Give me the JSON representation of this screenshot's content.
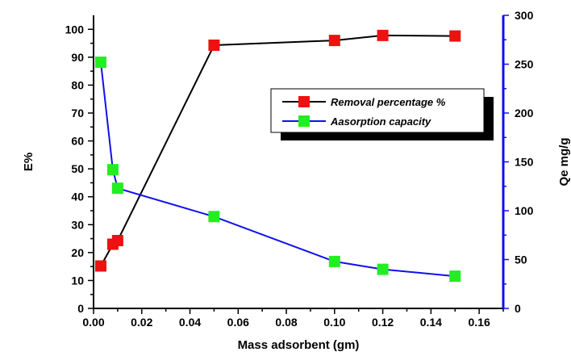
{
  "chart_data": {
    "type": "line",
    "xlabel": "Mass adsorbent (gm)",
    "ylabel": "E%",
    "y2label": "Qe mg/g",
    "xlim": [
      0.0,
      0.17
    ],
    "ylim": [
      0,
      105
    ],
    "y2lim": [
      0,
      300
    ],
    "x_ticks": [
      "0.00",
      "0.02",
      "0.04",
      "0.06",
      "0.08",
      "0.10",
      "0.12",
      "0.14",
      "0.16"
    ],
    "y_ticks": [
      "0",
      "10",
      "20",
      "30",
      "40",
      "50",
      "60",
      "70",
      "80",
      "90",
      "100"
    ],
    "y2_ticks": [
      "0",
      "50",
      "100",
      "150",
      "200",
      "250",
      "300"
    ],
    "grid": false,
    "legend_position": "upper-right",
    "series": [
      {
        "name": "Removal percentage %",
        "axis": "left",
        "line_color": "#000000",
        "marker_color": "#ee1111",
        "x": [
          0.003,
          0.008,
          0.01,
          0.05,
          0.1,
          0.12,
          0.15
        ],
        "values": [
          15.2,
          23.0,
          24.3,
          94.3,
          96.0,
          97.8,
          97.6
        ]
      },
      {
        "name": "Aasorption capacity",
        "axis": "right",
        "line_color": "#1010ee",
        "marker_color": "#22ee22",
        "x": [
          0.003,
          0.008,
          0.01,
          0.05,
          0.1,
          0.12,
          0.15
        ],
        "values": [
          252,
          142,
          123,
          94,
          48,
          40,
          33
        ]
      }
    ]
  },
  "colors": {
    "left_axis": "#000000",
    "right_axis": "#1010ee"
  }
}
